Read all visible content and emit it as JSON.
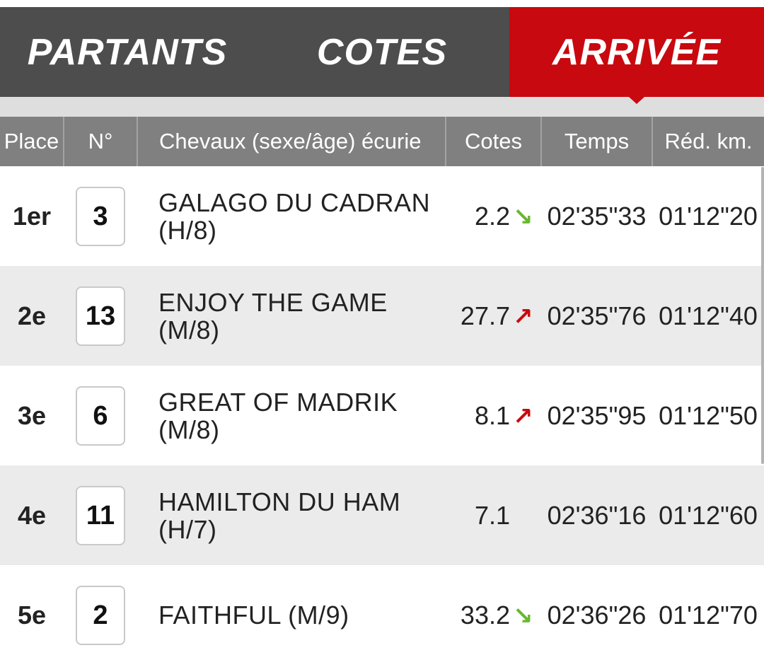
{
  "tabs": [
    {
      "label": "PARTANTS",
      "active": false
    },
    {
      "label": "COTES",
      "active": false
    },
    {
      "label": "ARRIVÉE",
      "active": true
    }
  ],
  "colors": {
    "tab_bar": "#4d4d4d",
    "tab_active": "#c8090f",
    "header_bg": "#808080",
    "row_alt": "#ebebeb",
    "odds_down": "#68b82e",
    "odds_up": "#c8090f"
  },
  "table": {
    "headers": {
      "place": "Place",
      "num": "N°",
      "horse": "Chevaux (sexe/âge) écurie",
      "odds": "Cotes",
      "time": "Temps",
      "red": "Réd. km."
    },
    "rows": [
      {
        "place": "1er",
        "num": "3",
        "horse": "GALAGO DU CADRAN (H/8)",
        "odds": "2.2",
        "trend": "down",
        "trend_icon": "arrow-down-right-icon",
        "time": "02'35\"33",
        "red": "01'12\"20"
      },
      {
        "place": "2e",
        "num": "13",
        "horse": "ENJOY THE GAME (M/8)",
        "odds": "27.7",
        "trend": "up",
        "trend_icon": "arrow-up-right-icon",
        "time": "02'35\"76",
        "red": "01'12\"40"
      },
      {
        "place": "3e",
        "num": "6",
        "horse": "GREAT OF MADRIK (M/8)",
        "odds": "8.1",
        "trend": "up",
        "trend_icon": "arrow-up-right-icon",
        "time": "02'35\"95",
        "red": "01'12\"50"
      },
      {
        "place": "4e",
        "num": "11",
        "horse": "HAMILTON DU HAM (H/7)",
        "odds": "7.1",
        "trend": "none",
        "trend_icon": "",
        "time": "02'36\"16",
        "red": "01'12\"60"
      },
      {
        "place": "5e",
        "num": "2",
        "horse": "FAITHFUL (M/9)",
        "odds": "33.2",
        "trend": "down",
        "trend_icon": "arrow-down-right-icon",
        "time": "02'36\"26",
        "red": "01'12\"70"
      }
    ]
  }
}
